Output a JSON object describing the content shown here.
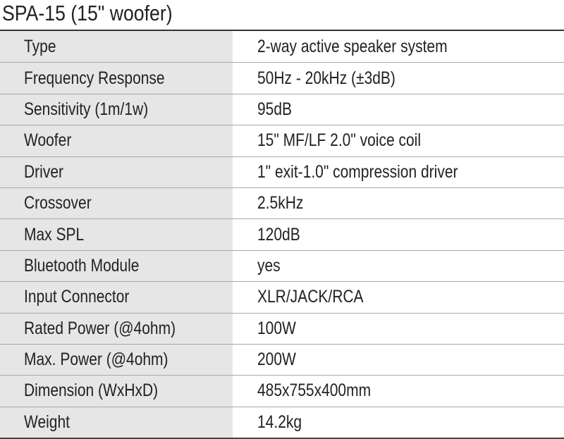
{
  "title": "SPA-15  (15\" woofer)",
  "specs": [
    {
      "label": "Type",
      "value": "2-way active speaker system"
    },
    {
      "label": "Frequency Response",
      "value": "50Hz - 20kHz (±3dB)"
    },
    {
      "label": "Sensitivity (1m/1w)",
      "value": "95dB"
    },
    {
      "label": "Woofer",
      "value": "15\" MF/LF 2.0\" voice coil"
    },
    {
      "label": "Driver",
      "value": "1\" exit-1.0\" compression driver"
    },
    {
      "label": "Crossover",
      "value": "2.5kHz"
    },
    {
      "label": "Max SPL",
      "value": "120dB"
    },
    {
      "label": "Bluetooth Module",
      "value": "yes"
    },
    {
      "label": "Input Connector",
      "value": "XLR/JACK/RCA"
    },
    {
      "label": "Rated Power (@4ohm)",
      "value": "100W"
    },
    {
      "label": "Max. Power (@4ohm)",
      "value": "200W"
    },
    {
      "label": "Dimension (WxHxD)",
      "value": "485x755x400mm"
    },
    {
      "label": "Weight",
      "value": "14.2kg"
    }
  ],
  "colors": {
    "label_bg": "#e6e6e6",
    "value_bg": "#ffffff",
    "rule": "#a8a8a8",
    "border": "#333333"
  }
}
